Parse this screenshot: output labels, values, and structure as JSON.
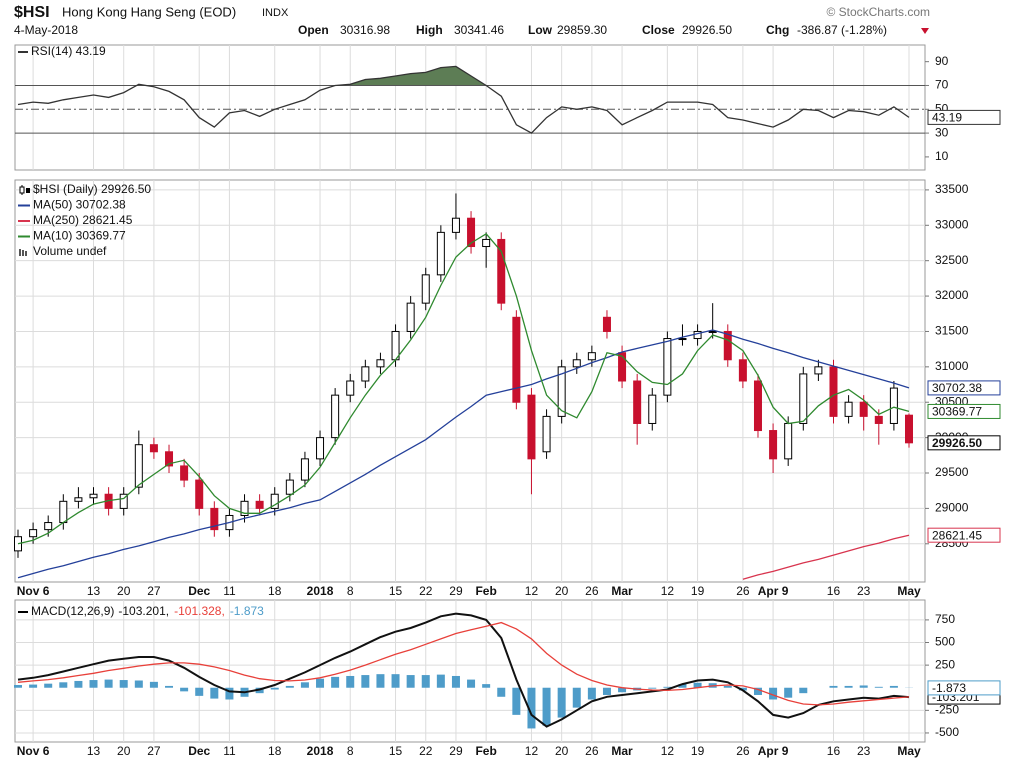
{
  "header": {
    "symbol": "$HSI",
    "name": "Hong Kong Hang Seng (EOD)",
    "exchange": "INDX",
    "credit": "© StockCharts.com",
    "date": "4-May-2018",
    "open_label": "Open",
    "open": "30316.98",
    "high_label": "High",
    "high": "30341.46",
    "low_label": "Low",
    "low": "29859.30",
    "close_label": "Close",
    "close": "29926.50",
    "chg_label": "Chg",
    "chg": "-386.87 (-1.28%)"
  },
  "chart_data": [
    {
      "type": "rsi",
      "title": "RSI(14) 43.19",
      "ylim": [
        -1,
        104
      ],
      "yticks": [
        10,
        30,
        50,
        70,
        90
      ],
      "grid": false,
      "overbought": 70,
      "midline": 50,
      "oversold": 30,
      "fill_color": "#5d7d55",
      "series": [
        {
          "name": "RSI(14)",
          "color": "#333333",
          "last_value_label": "43.19",
          "values": [
            54,
            56,
            55,
            58,
            60,
            62,
            60,
            64,
            71,
            69,
            65,
            58,
            43,
            35,
            47,
            49,
            44,
            50,
            54,
            58,
            66,
            70,
            71,
            75,
            76,
            78,
            80,
            81,
            85,
            86,
            78,
            70,
            61,
            37,
            30,
            43,
            52,
            50,
            52,
            49,
            37,
            43,
            49,
            56,
            56,
            56,
            54,
            43,
            41,
            38,
            35,
            41,
            50,
            49,
            43,
            49,
            48,
            45,
            52,
            43.19
          ]
        }
      ]
    },
    {
      "type": "candlestick",
      "ylim": [
        27960,
        33640
      ],
      "yticks": [
        28500,
        29000,
        29500,
        30000,
        30500,
        31000,
        31500,
        32000,
        32500,
        33000,
        33500
      ],
      "grid": true,
      "volume_label": "Volume undef",
      "categories": [
        null,
        "Nov 6",
        null,
        null,
        null,
        "13",
        null,
        "20",
        null,
        "27",
        null,
        null,
        "Dec",
        null,
        "11",
        null,
        null,
        "18",
        null,
        null,
        "2018",
        null,
        "8",
        null,
        null,
        "15",
        null,
        "22",
        null,
        "29",
        null,
        "Feb",
        null,
        null,
        "12",
        null,
        "20",
        null,
        "26",
        null,
        "Mar",
        null,
        null,
        "12",
        null,
        "19",
        null,
        null,
        "26",
        null,
        "Apr 9",
        null,
        null,
        null,
        "16",
        null,
        "23",
        null,
        null,
        "May"
      ],
      "series": [
        {
          "name": "$HSI (Daily) 29926.50",
          "up_color": "#000000",
          "down_color": "#c8102e",
          "last_value_label": "29926.50",
          "open": [
            28400,
            28600,
            28700,
            28800,
            29100,
            29150,
            29200,
            29000,
            29300,
            29900,
            29800,
            29600,
            29400,
            29000,
            28700,
            28900,
            29100,
            29000,
            29200,
            29400,
            29700,
            30000,
            30600,
            30800,
            31000,
            31100,
            31500,
            31900,
            32300,
            32900,
            33100,
            32700,
            32800,
            31700,
            30600,
            29800,
            30300,
            31000,
            31100,
            31700,
            31200,
            30800,
            30200,
            30600,
            31400,
            31400,
            31500,
            31500,
            31100,
            30800,
            30100,
            29700,
            30200,
            30900,
            31000,
            30300,
            30500,
            30300,
            30200,
            30316.98
          ],
          "high": [
            28700,
            28800,
            28900,
            29200,
            29300,
            29300,
            29300,
            29300,
            30100,
            30000,
            29900,
            29700,
            29500,
            29100,
            29000,
            29200,
            29200,
            29300,
            29500,
            29800,
            30100,
            30700,
            30900,
            31100,
            31200,
            31600,
            32000,
            32400,
            33000,
            33450,
            33200,
            32900,
            32900,
            31800,
            30700,
            30400,
            31100,
            31200,
            31300,
            31800,
            31300,
            30900,
            30700,
            31500,
            31600,
            31600,
            31900,
            31600,
            31200,
            30900,
            30200,
            30300,
            31000,
            31100,
            31100,
            30600,
            30600,
            30400,
            30800,
            30341.46
          ],
          "low": [
            28300,
            28500,
            28600,
            28700,
            29000,
            29050,
            28900,
            28900,
            29200,
            29700,
            29500,
            29300,
            28900,
            28600,
            28600,
            28800,
            28900,
            28900,
            29100,
            29300,
            29600,
            29900,
            30500,
            30700,
            30900,
            31000,
            31400,
            31800,
            32200,
            32800,
            32600,
            32400,
            31800,
            30400,
            29200,
            29700,
            30200,
            30900,
            31000,
            31400,
            30700,
            29900,
            30100,
            30500,
            31300,
            31300,
            31400,
            31000,
            30700,
            30000,
            29500,
            29600,
            30100,
            30800,
            30200,
            30200,
            30100,
            29900,
            30100,
            29859.3
          ],
          "close": [
            28600,
            28700,
            28800,
            29100,
            29150,
            29200,
            29000,
            29200,
            29900,
            29800,
            29600,
            29400,
            29000,
            28700,
            28900,
            29100,
            29000,
            29200,
            29400,
            29700,
            30000,
            30600,
            30800,
            31000,
            31100,
            31500,
            31900,
            32300,
            32900,
            33100,
            32700,
            32800,
            31900,
            30500,
            29700,
            30300,
            31000,
            31100,
            31200,
            31500,
            30800,
            30200,
            30600,
            31400,
            31400,
            31500,
            31500,
            31100,
            30800,
            30100,
            29700,
            30200,
            30900,
            31000,
            30300,
            30500,
            30300,
            30200,
            30700,
            29926.5
          ]
        },
        {
          "name": "MA(50) 30702.38",
          "color": "#24409a",
          "last_value_label": "30702.38",
          "values": [
            28020,
            28080,
            28140,
            28190,
            28250,
            28310,
            28360,
            28420,
            28470,
            28530,
            28590,
            28640,
            28700,
            28750,
            28800,
            28860,
            28910,
            28960,
            29010,
            29070,
            29120,
            29240,
            29360,
            29480,
            29610,
            29730,
            29850,
            29970,
            30130,
            30290,
            30440,
            30600,
            30650,
            30700,
            30750,
            30830,
            30900,
            30980,
            31060,
            31130,
            31210,
            31260,
            31310,
            31360,
            31420,
            31470,
            31520,
            31460,
            31390,
            31330,
            31260,
            31200,
            31130,
            31070,
            31010,
            30950,
            30890,
            30830,
            30770,
            30702.38
          ]
        },
        {
          "name": "MA(250) 28621.45",
          "color": "#d8344e",
          "last_value_label": "28621.45",
          "values": [
            null,
            null,
            null,
            null,
            null,
            null,
            null,
            null,
            null,
            null,
            null,
            null,
            null,
            null,
            null,
            null,
            null,
            null,
            null,
            null,
            null,
            null,
            null,
            null,
            null,
            null,
            null,
            null,
            null,
            null,
            null,
            null,
            null,
            null,
            null,
            null,
            null,
            null,
            null,
            null,
            null,
            null,
            null,
            null,
            null,
            null,
            null,
            null,
            28000,
            28060,
            28110,
            28170,
            28230,
            28280,
            28340,
            28400,
            28460,
            28510,
            28570,
            28621.45
          ]
        },
        {
          "name": "MA(10) 30369.77",
          "color": "#2f8a2f",
          "last_value_label": "30369.77",
          "values": [
            28500,
            28550,
            28650,
            28800,
            28940,
            29060,
            29110,
            29140,
            29330,
            29480,
            29630,
            29680,
            29450,
            29180,
            29000,
            28930,
            28930,
            29050,
            29180,
            29330,
            29580,
            29930,
            30280,
            30600,
            30880,
            31100,
            31380,
            31700,
            32150,
            32550,
            32750,
            32880,
            32630,
            32000,
            31230,
            30600,
            30380,
            30280,
            30650,
            31200,
            31150,
            30930,
            30780,
            30750,
            30900,
            31230,
            31450,
            31380,
            31230,
            30880,
            30430,
            30200,
            30230,
            30450,
            30600,
            30680,
            30530,
            30330,
            30430,
            30369.77
          ]
        }
      ]
    },
    {
      "type": "macd",
      "title": "MACD(12,26,9)",
      "ylim": [
        -600,
        970
      ],
      "yticks": [
        -500,
        -250,
        250,
        500,
        750
      ],
      "grid": true,
      "categories": [
        null,
        "Nov 6",
        null,
        null,
        null,
        "13",
        null,
        "20",
        null,
        "27",
        null,
        null,
        "Dec",
        null,
        "11",
        null,
        null,
        "18",
        null,
        null,
        "2018",
        null,
        "8",
        null,
        null,
        "15",
        null,
        "22",
        null,
        "29",
        null,
        "Feb",
        null,
        null,
        "12",
        null,
        "20",
        null,
        "26",
        null,
        "Mar",
        null,
        null,
        "12",
        null,
        "19",
        null,
        null,
        "26",
        null,
        "Apr 9",
        null,
        null,
        null,
        "16",
        null,
        "23",
        null,
        null,
        "May"
      ],
      "series": [
        {
          "name": "-103.201,",
          "color": "#111111",
          "last_value_label": "-103.201",
          "values": [
            90,
            110,
            140,
            180,
            220,
            260,
            300,
            320,
            340,
            340,
            300,
            220,
            120,
            30,
            -40,
            -50,
            -20,
            30,
            100,
            170,
            250,
            330,
            400,
            480,
            560,
            620,
            660,
            720,
            790,
            820,
            800,
            750,
            550,
            90,
            -300,
            -430,
            -350,
            -250,
            -150,
            -100,
            -80,
            -60,
            -40,
            -20,
            40,
            80,
            90,
            60,
            -30,
            -150,
            -300,
            -330,
            -280,
            -190,
            -150,
            -130,
            -110,
            -120,
            -90,
            -103.201
          ]
        },
        {
          "name": "-101.328,",
          "color": "#e8403a",
          "values": [
            60,
            75,
            90,
            110,
            135,
            160,
            190,
            215,
            240,
            260,
            275,
            275,
            260,
            230,
            190,
            140,
            100,
            80,
            75,
            85,
            110,
            150,
            195,
            250,
            310,
            370,
            420,
            480,
            540,
            600,
            640,
            680,
            720,
            650,
            540,
            380,
            250,
            150,
            80,
            30,
            0,
            -15,
            -25,
            -30,
            -20,
            0,
            20,
            30,
            20,
            -20,
            -80,
            -140,
            -180,
            -190,
            -180,
            -160,
            -145,
            -130,
            -115,
            -101.328
          ]
        },
        {
          "name": "-1.873",
          "type": "bar",
          "color": "#4e9cc9",
          "last_value_label": "-1.873",
          "values": [
            30,
            35,
            45,
            60,
            75,
            85,
            90,
            85,
            80,
            65,
            20,
            -40,
            -90,
            -120,
            -130,
            -100,
            -60,
            -20,
            20,
            60,
            100,
            120,
            130,
            140,
            150,
            150,
            140,
            140,
            145,
            130,
            90,
            40,
            -100,
            -300,
            -450,
            -420,
            -330,
            -220,
            -130,
            -80,
            -50,
            -30,
            -10,
            10,
            40,
            55,
            50,
            20,
            -30,
            -80,
            -130,
            -110,
            -60,
            0,
            20,
            20,
            25,
            10,
            20,
            -1.873
          ]
        }
      ]
    }
  ]
}
